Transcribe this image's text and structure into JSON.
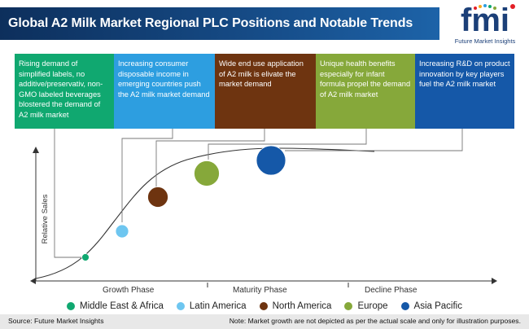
{
  "header": {
    "title": "Global A2 Milk Market Regional PLC Positions and Notable Trends"
  },
  "logo": {
    "letters": "fmi",
    "company": "Future Market Insights"
  },
  "trends": [
    {
      "text": "Rising demand of simplified labels, no additive/preservativ, non-GMO labeled beverages blostered the demand of A2 milk market",
      "color": "#10a870"
    },
    {
      "text": "Increasing consumer disposable income in emerging countries push the A2 milk market demand",
      "color": "#2d9ee0"
    },
    {
      "text": "Wide end use application of A2 milk is elivate the market demand",
      "color": "#6e3410"
    },
    {
      "text": "Unique health  benefits especially for infant  formula propel the demand of A2 milk market",
      "color": "#86a83a"
    },
    {
      "text": "Increasing R&D on product innovation by key players fuel the A2 milk market",
      "color": "#1558a8"
    }
  ],
  "chart": {
    "y_axis_label": "Relative Sales",
    "phases": [
      "Growth Phase",
      "Maturity Phase",
      "Decline Phase"
    ]
  },
  "legend": [
    {
      "name": "Middle East & Africa",
      "color": "#10a870"
    },
    {
      "name": "Latin America",
      "color": "#6ec6f0"
    },
    {
      "name": "North America",
      "color": "#6e3410"
    },
    {
      "name": "Europe",
      "color": "#86a83a"
    },
    {
      "name": "Asia Pacific",
      "color": "#1558a8"
    }
  ],
  "footer": {
    "source": "Source: Future Market Insights",
    "note": "Note: Market growth are not depicted as per the actual scale and only for illustration purposes."
  }
}
